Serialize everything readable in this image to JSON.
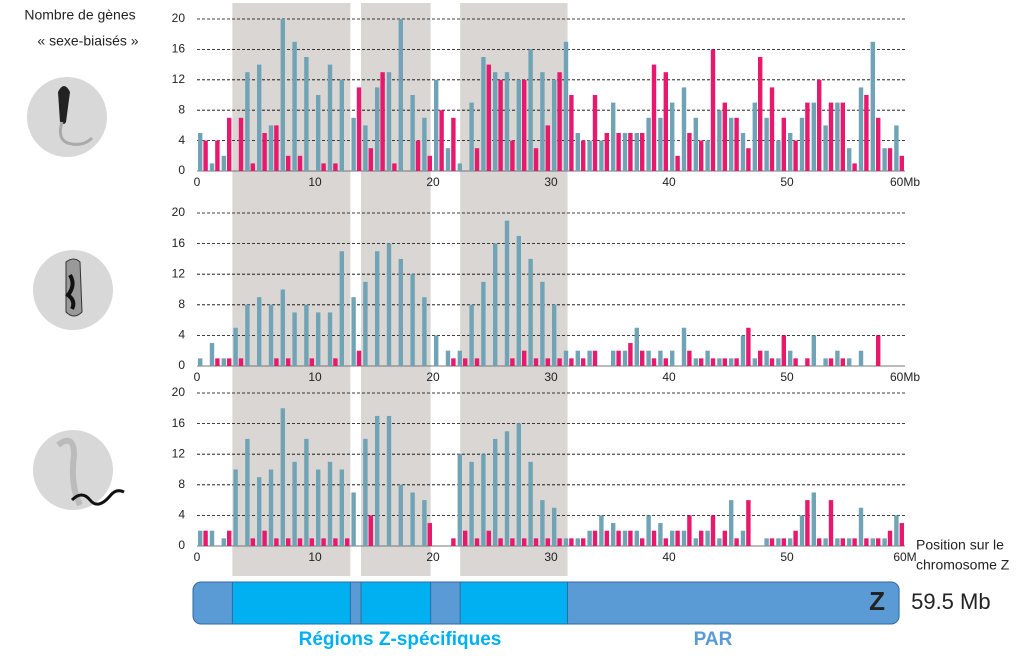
{
  "y_axis_label": [
    "Nombre de gènes",
    "« sexe-biaisés »"
  ],
  "x_axis_label": [
    "Position sur le",
    "chromosome Z"
  ],
  "shaded_regions": [
    [
      3,
      13
    ],
    [
      13.9,
      19.8
    ],
    [
      22.3,
      31.4
    ]
  ],
  "chromosome": {
    "label": "Z",
    "length": 59.5,
    "length_label": "59.5 Mb"
  },
  "region_labels": [
    "Régions Z-spécifiques",
    "PAR"
  ],
  "chart_data": [
    {
      "type": "bar",
      "grid": true,
      "ylim": [
        0,
        20
      ],
      "yticks": [
        0,
        4,
        8,
        12,
        16,
        20
      ],
      "xlim": [
        0,
        60
      ],
      "xticks": [
        0,
        10,
        20,
        30,
        40,
        50,
        {
          "value": 60,
          "label": "60Mb"
        }
      ],
      "x": [
        0,
        1,
        2,
        3,
        4,
        5,
        6,
        7,
        8,
        9,
        10,
        11,
        12,
        13,
        14,
        15,
        16,
        17,
        18,
        19,
        20,
        21,
        22,
        23,
        24,
        25,
        26,
        27,
        28,
        29,
        30,
        31,
        32,
        33,
        34,
        35,
        36,
        37,
        38,
        39,
        40,
        41,
        42,
        43,
        44,
        45,
        46,
        47,
        48,
        49,
        50,
        51,
        52,
        53,
        54,
        55,
        56,
        57,
        58,
        59
      ],
      "series": [
        {
          "color": "#6fa3b5",
          "values": [
            5,
            1,
            2,
            0,
            13,
            14,
            6,
            20,
            17,
            15,
            10,
            14,
            12,
            7,
            6,
            11,
            13,
            20,
            10,
            7,
            12,
            3,
            1,
            9,
            15,
            13,
            13,
            12,
            16,
            13,
            12,
            17,
            5,
            4,
            4,
            9,
            5,
            5,
            7,
            7,
            9,
            11,
            7,
            4,
            8,
            7,
            5,
            9,
            7,
            4,
            5,
            7,
            9,
            6,
            9,
            3,
            11,
            17,
            3,
            6
          ]
        },
        {
          "color": "#e8186d",
          "values": [
            4,
            4,
            7,
            7,
            1,
            5,
            6,
            2,
            2,
            0,
            1,
            1,
            0,
            11,
            3,
            13,
            1,
            0,
            4,
            2,
            8,
            7,
            0,
            3,
            14,
            12,
            4,
            12,
            3,
            6,
            13,
            10,
            4,
            10,
            5,
            5,
            5,
            5,
            14,
            13,
            2,
            5,
            4,
            16,
            9,
            7,
            3,
            15,
            11,
            7,
            4,
            9,
            12,
            9,
            9,
            1,
            10,
            7,
            3,
            2
          ]
        }
      ]
    },
    {
      "type": "bar",
      "grid": true,
      "ylim": [
        0,
        20
      ],
      "yticks": [
        0,
        4,
        8,
        12,
        16,
        20
      ],
      "xlim": [
        0,
        60
      ],
      "xticks": [
        0,
        10,
        20,
        30,
        40,
        50,
        {
          "value": 60,
          "label": "60Mb"
        }
      ],
      "x": [
        0,
        1,
        2,
        3,
        4,
        5,
        6,
        7,
        8,
        9,
        10,
        11,
        12,
        13,
        14,
        15,
        16,
        17,
        18,
        19,
        20,
        21,
        22,
        23,
        24,
        25,
        26,
        27,
        28,
        29,
        30,
        31,
        32,
        33,
        34,
        35,
        36,
        37,
        38,
        39,
        40,
        41,
        42,
        43,
        44,
        45,
        46,
        47,
        48,
        49,
        50,
        51,
        52,
        53,
        54,
        55,
        56,
        57,
        58,
        59
      ],
      "series": [
        {
          "color": "#6fa3b5",
          "values": [
            1,
            3,
            1,
            5,
            8,
            9,
            8,
            10,
            7,
            8,
            7,
            7,
            15,
            9,
            11,
            15,
            16,
            14,
            12,
            9,
            4,
            2,
            2,
            8,
            11,
            16,
            19,
            17,
            14,
            11,
            8,
            2,
            2,
            2,
            0,
            2,
            2,
            5,
            2,
            2,
            2,
            5,
            1,
            2,
            1,
            1,
            4,
            1,
            2,
            1,
            2,
            0,
            4,
            1,
            2,
            1,
            2,
            0,
            0,
            0
          ]
        },
        {
          "color": "#e8186d",
          "values": [
            0,
            1,
            1,
            1,
            0,
            0,
            1,
            1,
            0,
            1,
            0,
            1,
            0,
            2,
            0,
            0,
            0,
            0,
            0,
            0,
            0,
            1,
            1,
            1,
            0,
            0,
            1,
            2,
            1,
            1,
            1,
            1,
            1,
            2,
            0,
            2,
            3,
            2,
            1,
            1,
            0,
            2,
            1,
            1,
            1,
            1,
            5,
            2,
            1,
            4,
            1,
            1,
            0,
            1,
            1,
            0,
            0,
            4,
            0,
            0
          ]
        }
      ]
    },
    {
      "type": "bar",
      "grid": true,
      "ylim": [
        0,
        20
      ],
      "yticks": [
        0,
        4,
        8,
        12,
        16,
        20
      ],
      "xlim": [
        0,
        60
      ],
      "xticks": [
        0,
        10,
        20,
        30,
        40,
        50,
        {
          "value": 60,
          "label": "60M"
        }
      ],
      "x": [
        0,
        1,
        2,
        3,
        4,
        5,
        6,
        7,
        8,
        9,
        10,
        11,
        12,
        13,
        14,
        15,
        16,
        17,
        18,
        19,
        20,
        21,
        22,
        23,
        24,
        25,
        26,
        27,
        28,
        29,
        30,
        31,
        32,
        33,
        34,
        35,
        36,
        37,
        38,
        39,
        40,
        41,
        42,
        43,
        44,
        45,
        46,
        47,
        48,
        49,
        50,
        51,
        52,
        53,
        54,
        55,
        56,
        57,
        58,
        59
      ],
      "series": [
        {
          "color": "#6fa3b5",
          "values": [
            2,
            2,
            1,
            10,
            14,
            9,
            10,
            18,
            11,
            14,
            10,
            11,
            10,
            7,
            14,
            17,
            17,
            8,
            7,
            6,
            0,
            0,
            12,
            11,
            12,
            14,
            15,
            16,
            11,
            6,
            5,
            1,
            1,
            2,
            4,
            3,
            2,
            2,
            4,
            3,
            2,
            2,
            1,
            2,
            1,
            6,
            2,
            0,
            1,
            1,
            1,
            4,
            7,
            1,
            1,
            1,
            5,
            1,
            1,
            4
          ]
        },
        {
          "color": "#e8186d",
          "values": [
            2,
            0,
            2,
            0,
            1,
            2,
            1,
            1,
            1,
            1,
            1,
            1,
            1,
            0,
            4,
            0,
            0,
            0,
            0,
            3,
            0,
            1,
            2,
            1,
            2,
            1,
            1,
            1,
            1,
            1,
            1,
            1,
            1,
            2,
            2,
            2,
            2,
            1,
            2,
            1,
            2,
            4,
            2,
            4,
            2,
            1,
            6,
            0,
            1,
            1,
            2,
            6,
            1,
            6,
            1,
            1,
            1,
            1,
            2,
            3
          ]
        }
      ]
    }
  ]
}
